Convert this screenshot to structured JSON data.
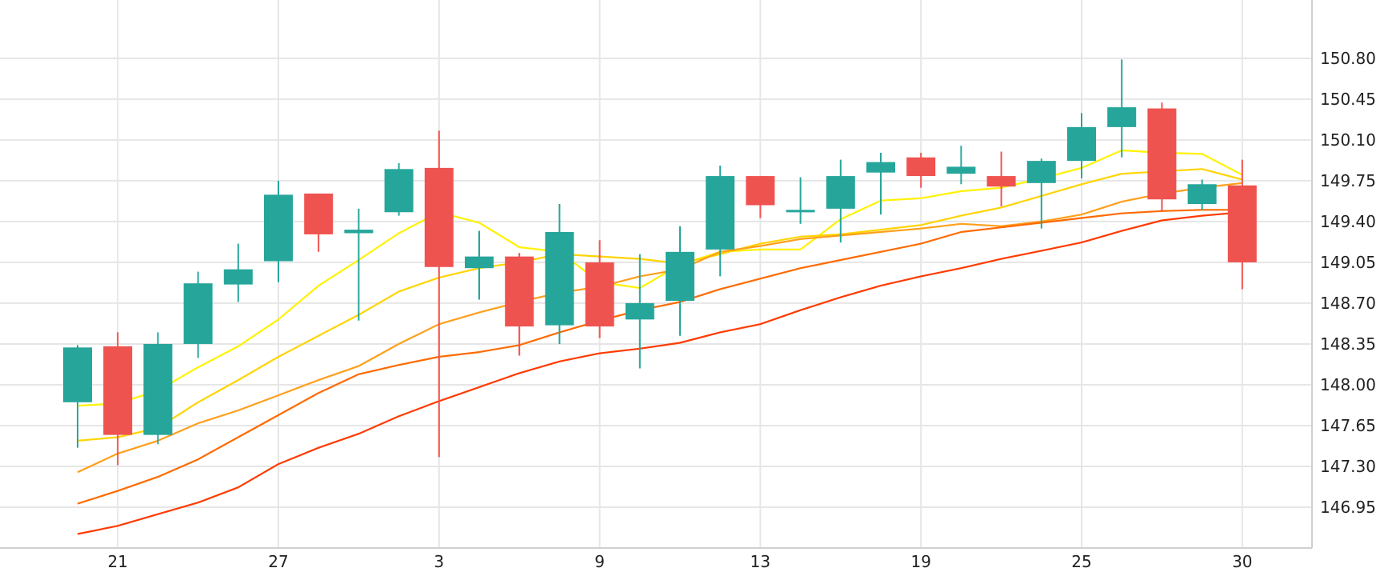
{
  "chart_data": {
    "type": "candlestick",
    "title": "",
    "xlabel": "",
    "ylabel": "",
    "ylim": [
      146.6,
      151.3
    ],
    "y_ticks": [
      "150.80",
      "150.45",
      "150.10",
      "149.75",
      "149.40",
      "149.05",
      "148.70",
      "148.35",
      "148.00",
      "147.65",
      "147.30",
      "146.95"
    ],
    "x_tick_labels": [
      "21",
      "27",
      "3",
      "9",
      "13",
      "19",
      "25",
      "30"
    ],
    "x_tick_index": [
      1,
      5,
      9,
      13,
      17,
      21,
      25,
      29
    ],
    "grid": true,
    "legend": "none",
    "colors": {
      "up": "#26a69a",
      "down": "#ef5350",
      "grid": "#e6e6e6",
      "axis": "#d0d0d0",
      "text": "#222222"
    },
    "candles": [
      {
        "open": 147.85,
        "high": 148.34,
        "low": 147.46,
        "close": 148.32
      },
      {
        "open": 148.33,
        "high": 148.45,
        "low": 147.31,
        "close": 147.57
      },
      {
        "open": 147.57,
        "high": 148.45,
        "low": 147.49,
        "close": 148.35
      },
      {
        "open": 148.35,
        "high": 148.97,
        "low": 148.23,
        "close": 148.87
      },
      {
        "open": 148.86,
        "high": 149.21,
        "low": 148.71,
        "close": 148.99
      },
      {
        "open": 149.06,
        "high": 149.75,
        "low": 148.88,
        "close": 149.63
      },
      {
        "open": 149.64,
        "high": 149.64,
        "low": 149.14,
        "close": 149.29
      },
      {
        "open": 149.3,
        "high": 149.51,
        "low": 148.55,
        "close": 149.33
      },
      {
        "open": 149.48,
        "high": 149.9,
        "low": 149.45,
        "close": 149.85
      },
      {
        "open": 149.86,
        "high": 150.18,
        "low": 147.38,
        "close": 149.01
      },
      {
        "open": 149.0,
        "high": 149.32,
        "low": 148.73,
        "close": 149.1
      },
      {
        "open": 149.1,
        "high": 149.13,
        "low": 148.25,
        "close": 148.5
      },
      {
        "open": 148.51,
        "high": 149.55,
        "low": 148.35,
        "close": 149.31
      },
      {
        "open": 149.05,
        "high": 149.24,
        "low": 148.4,
        "close": 148.5
      },
      {
        "open": 148.56,
        "high": 149.12,
        "low": 148.14,
        "close": 148.7
      },
      {
        "open": 148.72,
        "high": 149.36,
        "low": 148.42,
        "close": 149.14
      },
      {
        "open": 149.16,
        "high": 149.88,
        "low": 148.93,
        "close": 149.79
      },
      {
        "open": 149.79,
        "high": 149.79,
        "low": 149.43,
        "close": 149.54
      },
      {
        "open": 149.48,
        "high": 149.78,
        "low": 149.38,
        "close": 149.5
      },
      {
        "open": 149.51,
        "high": 149.93,
        "low": 149.22,
        "close": 149.79
      },
      {
        "open": 149.82,
        "high": 149.99,
        "low": 149.46,
        "close": 149.91
      },
      {
        "open": 149.95,
        "high": 149.99,
        "low": 149.69,
        "close": 149.79
      },
      {
        "open": 149.81,
        "high": 150.05,
        "low": 149.72,
        "close": 149.87
      },
      {
        "open": 149.79,
        "high": 150.0,
        "low": 149.53,
        "close": 149.7
      },
      {
        "open": 149.73,
        "high": 149.94,
        "low": 149.34,
        "close": 149.92
      },
      {
        "open": 149.92,
        "high": 150.33,
        "low": 149.77,
        "close": 150.21
      },
      {
        "open": 150.21,
        "high": 150.79,
        "low": 149.95,
        "close": 150.38
      },
      {
        "open": 150.37,
        "high": 150.42,
        "low": 149.49,
        "close": 149.59
      },
      {
        "open": 149.55,
        "high": 149.76,
        "low": 149.5,
        "close": 149.72
      },
      {
        "open": 149.71,
        "high": 149.93,
        "low": 148.82,
        "close": 149.05
      }
    ],
    "series": [
      {
        "color": "#fff200",
        "values": [
          147.82,
          147.84,
          147.95,
          148.15,
          148.33,
          148.56,
          148.85,
          149.07,
          149.3,
          149.48,
          149.39,
          149.18,
          149.14,
          148.88,
          148.83,
          149.03,
          149.14,
          149.16,
          149.16,
          149.42,
          149.58,
          149.6,
          149.66,
          149.69,
          149.77,
          149.86,
          150.01,
          149.99,
          149.98,
          149.8
        ]
      },
      {
        "color": "#ffd400",
        "values": [
          147.52,
          147.55,
          147.63,
          147.85,
          148.04,
          148.24,
          148.42,
          148.6,
          148.8,
          148.92,
          149.0,
          149.05,
          149.12,
          149.1,
          149.08,
          149.04,
          149.12,
          149.21,
          149.27,
          149.29,
          149.33,
          149.37,
          149.45,
          149.52,
          149.62,
          149.72,
          149.81,
          149.83,
          149.85,
          149.76
        ]
      },
      {
        "color": "#ff9f1a",
        "values": [
          147.25,
          147.41,
          147.52,
          147.67,
          147.78,
          147.91,
          148.04,
          148.16,
          148.35,
          148.52,
          148.62,
          148.71,
          148.79,
          148.84,
          148.93,
          148.99,
          149.14,
          149.19,
          149.25,
          149.28,
          149.31,
          149.34,
          149.38,
          149.36,
          149.4,
          149.46,
          149.57,
          149.64,
          149.69,
          149.73
        ]
      },
      {
        "color": "#ff6a00",
        "values": [
          146.98,
          147.09,
          147.21,
          147.36,
          147.55,
          147.74,
          147.93,
          148.09,
          148.17,
          148.24,
          148.28,
          148.34,
          148.45,
          148.55,
          148.64,
          148.71,
          148.82,
          148.91,
          149.0,
          149.07,
          149.14,
          149.21,
          149.31,
          149.35,
          149.39,
          149.43,
          149.47,
          149.49,
          149.5,
          149.5
        ]
      },
      {
        "color": "#ff3b00",
        "values": [
          146.72,
          146.79,
          146.89,
          146.99,
          147.12,
          147.32,
          147.46,
          147.58,
          147.73,
          147.86,
          147.98,
          148.1,
          148.2,
          148.27,
          148.31,
          148.36,
          148.45,
          148.52,
          148.64,
          148.75,
          148.85,
          148.93,
          149.0,
          149.08,
          149.15,
          149.22,
          149.32,
          149.41,
          149.45,
          149.48
        ]
      }
    ]
  }
}
